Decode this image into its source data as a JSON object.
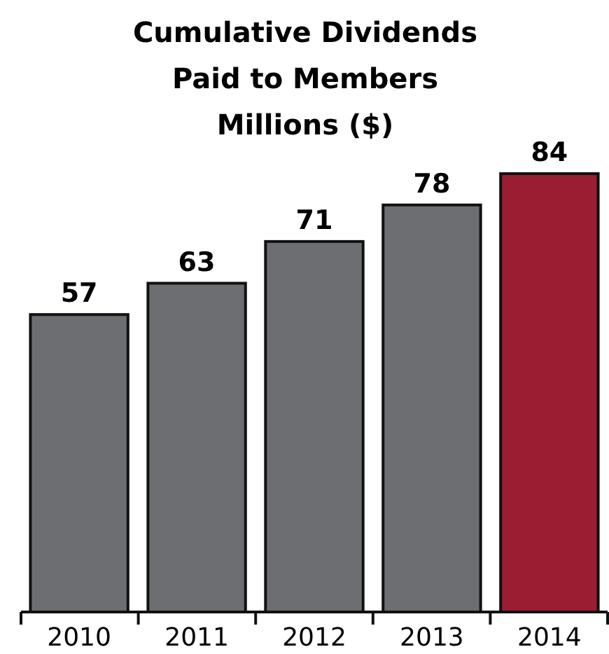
{
  "chart_data": {
    "type": "bar",
    "title": "Cumulative Dividends\nPaid to Members\nMillions ($)",
    "categories": [
      "2010",
      "2011",
      "2012",
      "2013",
      "2014"
    ],
    "values": [
      57,
      63,
      71,
      78,
      84
    ],
    "colors": [
      "#6d6e71",
      "#6d6e71",
      "#6d6e71",
      "#6d6e71",
      "#9b1d32"
    ],
    "data_labels": true,
    "grid": false
  }
}
